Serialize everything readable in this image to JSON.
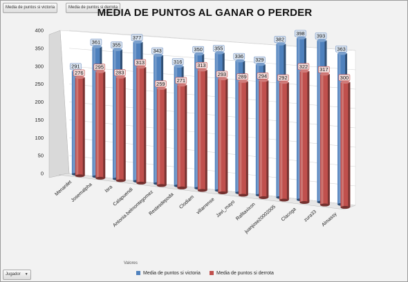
{
  "field_buttons": {
    "victoria": "Media de puntos si victoria",
    "derrota": "Media de puntos si derrota",
    "jugador": "Jugador",
    "valores": "Valores"
  },
  "colors": {
    "victoria": "#4f81bd",
    "derrota": "#c0504d"
  },
  "chart_data": {
    "type": "bar",
    "title": "MEDIA DE PUNTOS AL GANAR O PERDER",
    "xlabel": "",
    "ylabel": "",
    "ylim": [
      0,
      400
    ],
    "yticks": [
      0,
      50,
      100,
      150,
      200,
      250,
      300,
      350,
      400
    ],
    "grid": true,
    "legend_position": "bottom",
    "categories": [
      "Menardet",
      "Josemalpha",
      "Isra",
      "Calapuendi",
      "Antonia.belmontegomez",
      "Restesdepoda",
      "Clodiam",
      "villarrense",
      "Javi_mayo",
      "Rafitaxixon",
      "juanjose20002005",
      "Clacoga",
      "zura33",
      "Almassy"
    ],
    "series": [
      {
        "name": "Media de puntos si victoria",
        "values": [
          291,
          361,
          355,
          377,
          343,
          316,
          350,
          355,
          336,
          329,
          382,
          398,
          393,
          363
        ]
      },
      {
        "name": "Media de puntos si derrota",
        "values": [
          276,
          295,
          283,
          313,
          259,
          271,
          313,
          293,
          289,
          294,
          292,
          322,
          317,
          300
        ]
      }
    ]
  }
}
